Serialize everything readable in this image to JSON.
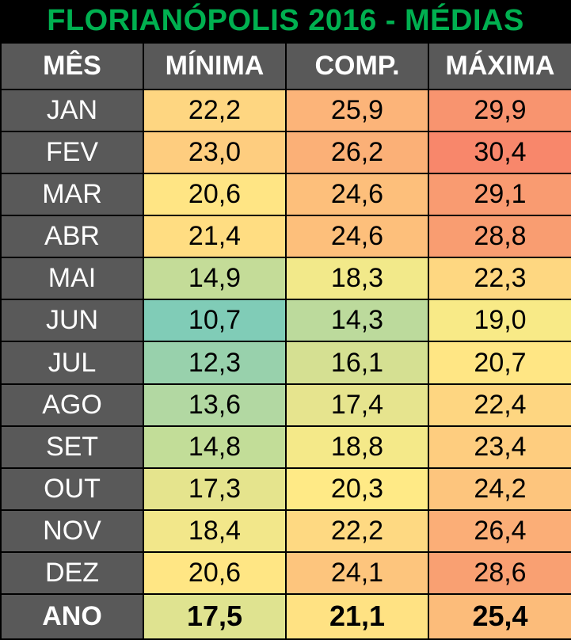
{
  "title": "FLORIANÓPOLIS 2016 - MÉDIAS",
  "chart_data": {
    "type": "table",
    "columns": [
      "MÊS",
      "MÍNIMA",
      "COMP.",
      "MÁXIMA"
    ],
    "rows": [
      {
        "month": "JAN",
        "values": [
          "22,2",
          "25,9",
          "29,9"
        ],
        "colors": [
          "#fed681",
          "#fcb479",
          "#f8946f"
        ]
      },
      {
        "month": "FEV",
        "values": [
          "23,0",
          "26,2",
          "30,4"
        ],
        "colors": [
          "#fecd7f",
          "#fbb077",
          "#f8876b"
        ]
      },
      {
        "month": "MAR",
        "values": [
          "20,6",
          "24,6",
          "29,1"
        ],
        "colors": [
          "#ffe584",
          "#fdbf7b",
          "#f99b71"
        ]
      },
      {
        "month": "ABR",
        "values": [
          "21,4",
          "24,6",
          "28,8"
        ],
        "colors": [
          "#ffdd82",
          "#fdbf7b",
          "#f99d71"
        ]
      },
      {
        "month": "MAI",
        "values": [
          "14,9",
          "18,3",
          "22,3"
        ],
        "colors": [
          "#c4dc98",
          "#f2e98a",
          "#fed781"
        ]
      },
      {
        "month": "JUN",
        "values": [
          "10,7",
          "14,3",
          "19,0"
        ],
        "colors": [
          "#80ccb7",
          "#bcda9c",
          "#f8ea87"
        ]
      },
      {
        "month": "JUL",
        "values": [
          "12,3",
          "16,1",
          "20,7"
        ],
        "colors": [
          "#98d1ac",
          "#d5e092",
          "#ffe684"
        ]
      },
      {
        "month": "AGO",
        "values": [
          "13,6",
          "17,4",
          "22,4"
        ],
        "colors": [
          "#b2d8a2",
          "#e6e48e",
          "#fed681"
        ]
      },
      {
        "month": "SET",
        "values": [
          "14,8",
          "18,8",
          "23,4"
        ],
        "colors": [
          "#c2dd98",
          "#f4e989",
          "#fecd7f"
        ]
      },
      {
        "month": "OUT",
        "values": [
          "17,3",
          "20,3",
          "24,2"
        ],
        "colors": [
          "#e5e48d",
          "#ffea86",
          "#fdc57d"
        ]
      },
      {
        "month": "NOV",
        "values": [
          "18,4",
          "22,2",
          "26,4"
        ],
        "colors": [
          "#f2e78a",
          "#fed982",
          "#fbae77"
        ]
      },
      {
        "month": "DEZ",
        "values": [
          "20,6",
          "24,1",
          "28,6"
        ],
        "colors": [
          "#ffe684",
          "#fdc57d",
          "#f9a072"
        ]
      }
    ],
    "total": {
      "month": "ANO",
      "values": [
        "17,5",
        "21,1",
        "25,4"
      ],
      "colors": [
        "#dfe390",
        "#ffe283",
        "#fcbc7a"
      ]
    }
  }
}
